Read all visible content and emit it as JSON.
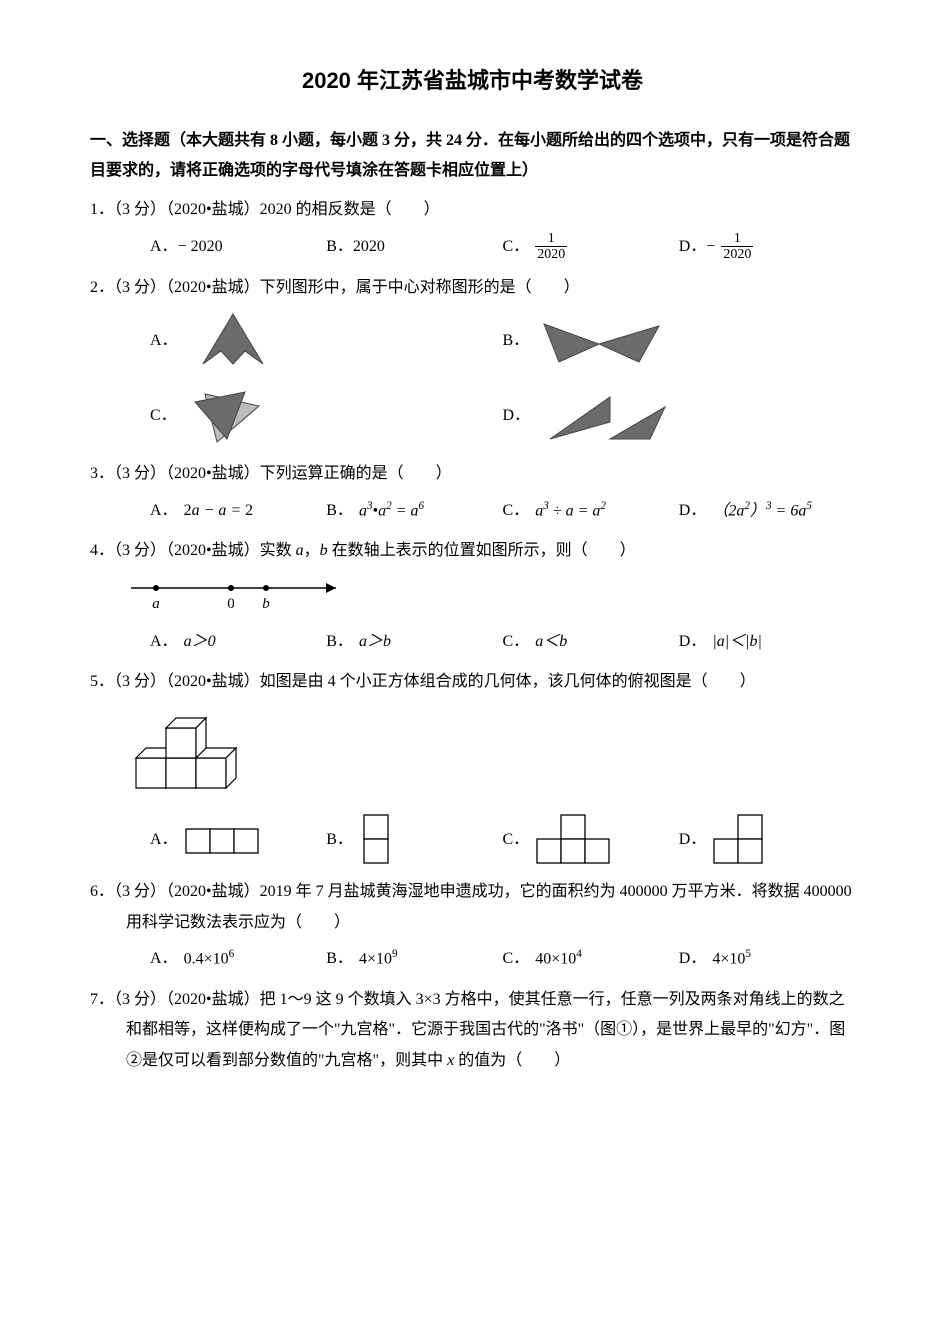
{
  "title": "2020 年江苏省盐城市中考数学试卷",
  "section1": "一、选择题（本大题共有 8 小题，每小题 3 分，共 24 分．在每小题所给出的四个选项中，只有一项是符合题目要求的，请将正确选项的字母代号填涂在答题卡相应位置上）",
  "q1": {
    "stem": "1．（3 分）（2020•盐城）2020 的相反数是（　　）",
    "A": "A．− 2020",
    "B": "B．2020",
    "C_label": "C．",
    "C_num": "1",
    "C_den": "2020",
    "D_label": "D．−",
    "D_num": "1",
    "D_den": "2020"
  },
  "q2": {
    "stem": "2．（3 分）（2020•盐城）下列图形中，属于中心对称图形的是（　　）",
    "A": "A．",
    "B": "B．",
    "C": "C．",
    "D": "D．",
    "fill": "#6b6b6b",
    "stroke": "#000"
  },
  "q3": {
    "stem": "3．（3 分）（2020•盐城）下列运算正确的是（　　）",
    "A_pre": "A．",
    "A_math": "2a − a = 2",
    "B_pre": "B．",
    "B_math_html": "a<sup>3</sup>•a<sup>2</sup> = a<sup>6</sup>",
    "C_pre": "C．",
    "C_math_html": "a<sup>3</sup> ÷ a = a<sup>2</sup>",
    "D_pre": "D．",
    "D_math_html": "（2a<sup>2</sup>）<sup>3</sup> = 6a<sup>5</sup>"
  },
  "q4": {
    "stem_pre": "4．（3 分）（2020•盐城）实数 ",
    "stem_mid": "，",
    "stem_post": " 在数轴上表示的位置如图所示，则（　　）",
    "var_a": "a",
    "var_b": "b",
    "labels": {
      "a": "a",
      "zero": "0",
      "b": "b"
    },
    "A_pre": "A．",
    "A_html": "a＞0",
    "B_pre": "B．",
    "B_html": "a＞b",
    "C_pre": "C．",
    "C_html": "a＜b",
    "D_pre": "D．",
    "D_html": "|a|＜|b|"
  },
  "q5": {
    "stem": "5．（3 分）（2020•盐城）如图是由 4 个小正方体组合成的几何体，该几何体的俯视图是（　　）",
    "A": "A．",
    "B": "B．",
    "C": "C．",
    "D": "D．",
    "stroke": "#000"
  },
  "q6": {
    "stem": "6．（3 分）（2020•盐城）2019 年 7 月盐城黄海湿地申遗成功，它的面积约为 400000 万平方米．将数据 400000 用科学记数法表示应为（　　）",
    "A_pre": "A．",
    "A_html": "0.4×10<sup>6</sup>",
    "B_pre": "B．",
    "B_html": "4×10<sup>9</sup>",
    "C_pre": "C．",
    "C_html": "40×10<sup>4</sup>",
    "D_pre": "D．",
    "D_html": "4×10<sup>5</sup>"
  },
  "q7": {
    "stem_1": "7．（3 分）（2020•盐城）把 1～9 这 9 个数填入 3×3 方格中，使其任意一行，任意一列及两条对角线上的数之和都相等，这样便构成了一个\"九宫格\"．它源于我国古代的\"洛书\"（图①），是世界上最早的\"幻方\"．图②是仅可以看到部分数值的\"九宫格\"，则其中 ",
    "x": "x",
    "stem_2": " 的值为（　　）"
  }
}
